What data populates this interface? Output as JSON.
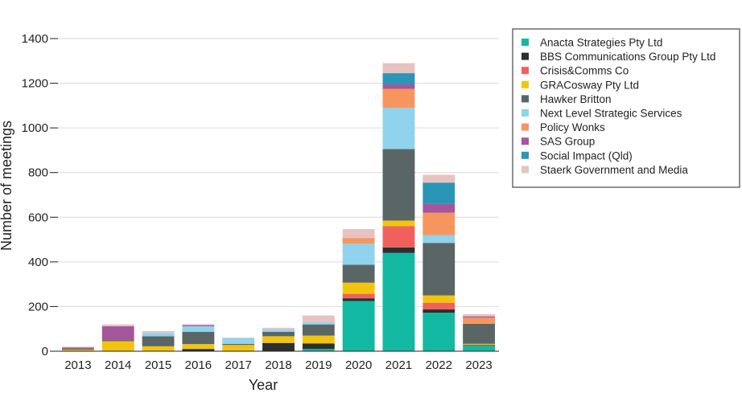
{
  "chart_data": {
    "type": "bar",
    "stacked": true,
    "title": "",
    "xlabel": "Year",
    "ylabel": "Number of meetings",
    "ylim": [
      0,
      1400
    ],
    "yticks": [
      "0",
      "200",
      "400",
      "600",
      "800",
      "1000",
      "1200",
      "1400"
    ],
    "grid": true,
    "legend_position": "top-right",
    "categories": [
      "2013",
      "2014",
      "2015",
      "2016",
      "2017",
      "2018",
      "2019",
      "2020",
      "2021",
      "2022",
      "2023"
    ],
    "series": [
      {
        "name": "Anacta Strategies Pty Ltd",
        "color": "#13b8a2",
        "values": [
          0,
          0,
          0,
          0,
          0,
          0,
          10,
          225,
          440,
          172,
          25
        ]
      },
      {
        "name": "BBS Communications Group Pty Ltd",
        "color": "#2b2f2f",
        "values": [
          0,
          0,
          0,
          10,
          0,
          37,
          25,
          12,
          25,
          15,
          3
        ]
      },
      {
        "name": "Crisis&Comms Co",
        "color": "#f0605d",
        "values": [
          0,
          0,
          0,
          0,
          0,
          0,
          0,
          20,
          95,
          30,
          0
        ]
      },
      {
        "name": "GRACosway Pty Ltd",
        "color": "#f2c40f",
        "values": [
          7,
          45,
          22,
          22,
          28,
          30,
          35,
          50,
          25,
          33,
          5
        ]
      },
      {
        "name": "Hawker Britton",
        "color": "#5a6666",
        "values": [
          5,
          5,
          45,
          55,
          5,
          20,
          50,
          80,
          320,
          235,
          90
        ]
      },
      {
        "name": "Next Level Strategic Services",
        "color": "#8fd3ec",
        "values": [
          0,
          0,
          15,
          25,
          25,
          10,
          10,
          95,
          185,
          35,
          0
        ]
      },
      {
        "name": "Policy Wonks",
        "color": "#f7955e",
        "values": [
          0,
          0,
          0,
          0,
          0,
          0,
          0,
          25,
          85,
          100,
          28
        ]
      },
      {
        "name": "SAS Group",
        "color": "#a4579c",
        "values": [
          5,
          62,
          0,
          5,
          0,
          0,
          0,
          0,
          20,
          40,
          5
        ]
      },
      {
        "name": "Social Impact (Qld)",
        "color": "#2b95b5",
        "values": [
          0,
          0,
          0,
          0,
          0,
          0,
          0,
          0,
          50,
          95,
          0
        ]
      },
      {
        "name": "Staerk Government and Media",
        "color": "#e6c3c0",
        "values": [
          3,
          8,
          8,
          3,
          3,
          8,
          30,
          40,
          45,
          35,
          10
        ]
      }
    ]
  }
}
